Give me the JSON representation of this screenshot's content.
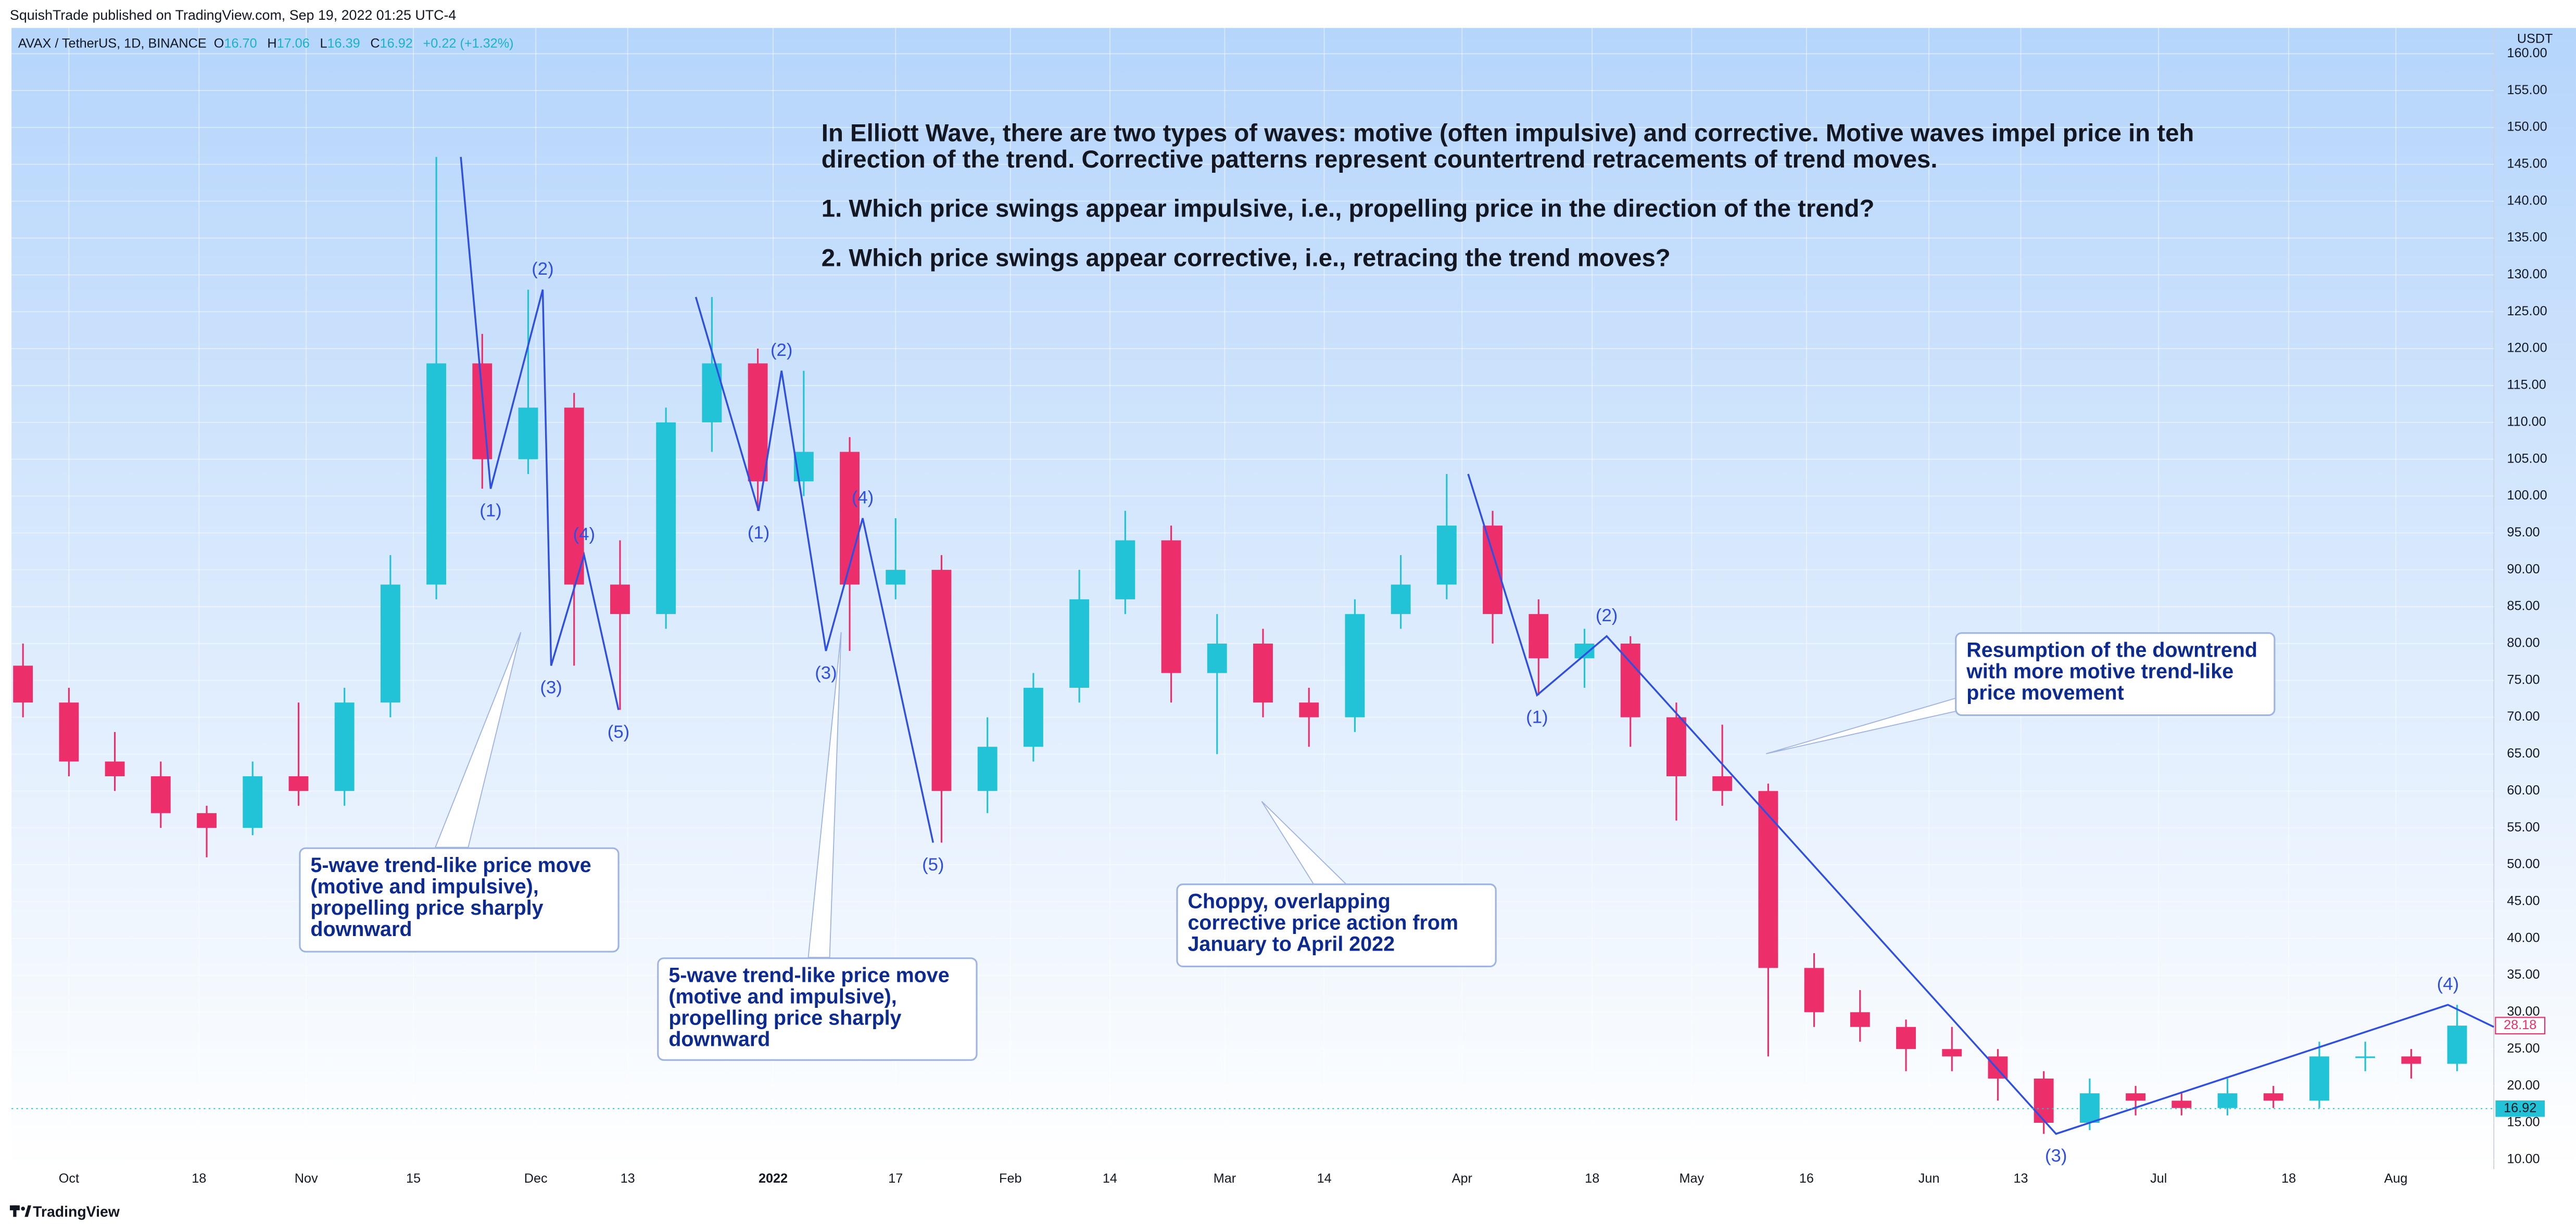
{
  "header": {
    "title": "SquishTrade published on TradingView.com, Sep 19, 2022 01:25 UTC-4",
    "symbol": "AVAX / TetherUS, 1D, BINANCE",
    "legend": [
      {
        "key": "O",
        "value": "16.70"
      },
      {
        "key": "H",
        "value": "17.06"
      },
      {
        "key": "L",
        "value": "16.39"
      },
      {
        "key": "C",
        "value": "16.92"
      }
    ],
    "change": "+0.22 (+1.32%)"
  },
  "chart_data": {
    "type": "candlestick",
    "axis_unit": "USDT",
    "x": [
      -6,
      0,
      6,
      12,
      18,
      24,
      30,
      36,
      42,
      48,
      54,
      60,
      66,
      72,
      78,
      84,
      90,
      96,
      102,
      108,
      114,
      120,
      126,
      132,
      138,
      144,
      150,
      156,
      162,
      168,
      174,
      180,
      186,
      192,
      198,
      204,
      210,
      216,
      222,
      228,
      234,
      240,
      246,
      252,
      258,
      264,
      270,
      276,
      282,
      288,
      294,
      300,
      306,
      312
    ],
    "open": [
      77,
      72,
      64,
      62,
      57,
      55,
      62,
      60,
      72,
      88,
      118,
      105,
      112,
      88,
      84,
      110,
      118,
      102,
      106,
      88,
      90,
      60,
      66,
      74,
      86,
      94,
      76,
      80,
      72,
      70,
      84,
      88,
      96,
      84,
      78,
      80,
      70,
      62,
      60,
      36,
      30,
      28,
      25,
      24,
      21,
      15,
      19,
      18,
      17,
      19,
      18,
      24,
      24,
      23
    ],
    "high": [
      80,
      74,
      68,
      64,
      58,
      64,
      72,
      74,
      92,
      146,
      122,
      128,
      114,
      94,
      112,
      127,
      120,
      117,
      108,
      97,
      92,
      70,
      76,
      90,
      98,
      96,
      84,
      82,
      74,
      86,
      92,
      103,
      98,
      86,
      82,
      81,
      72,
      69,
      61,
      38,
      33,
      29,
      28,
      25,
      22,
      21,
      20,
      19,
      21,
      20,
      26,
      26,
      25,
      31
    ],
    "low": [
      70,
      62,
      60,
      55,
      51,
      54,
      58,
      58,
      70,
      86,
      101,
      103,
      77,
      71,
      82,
      106,
      98,
      100,
      79,
      86,
      53,
      57,
      64,
      72,
      84,
      72,
      65,
      70,
      66,
      68,
      82,
      86,
      80,
      73,
      74,
      66,
      56,
      58,
      24,
      28,
      26,
      22,
      22,
      18,
      13.5,
      14,
      16,
      16,
      16,
      17,
      17,
      22,
      21,
      22
    ],
    "close": [
      72,
      64,
      62,
      57,
      55,
      62,
      60,
      72,
      88,
      118,
      105,
      112,
      88,
      84,
      110,
      118,
      102,
      106,
      88,
      90,
      60,
      66,
      74,
      86,
      94,
      76,
      80,
      72,
      70,
      84,
      88,
      96,
      84,
      78,
      80,
      70,
      62,
      60,
      36,
      30,
      28,
      25,
      24,
      21,
      15,
      19,
      18,
      17,
      19,
      18,
      24,
      24,
      23,
      28.18
    ],
    "up_color": "#22c3d6",
    "down_color": "#ec2f6a",
    "wave_color": "#2f4fe0",
    "xlim": [
      -7.5,
      316.8
    ],
    "ylim": [
      8.7,
      163.5
    ],
    "xticks": [
      {
        "value": 0,
        "label": "Oct"
      },
      {
        "value": 17,
        "label": "18"
      },
      {
        "value": 31,
        "label": "Nov"
      },
      {
        "value": 45,
        "label": "15"
      },
      {
        "value": 61,
        "label": "Dec"
      },
      {
        "value": 73,
        "label": "13"
      },
      {
        "value": 92,
        "label": "2022"
      },
      {
        "value": 108,
        "label": "17"
      },
      {
        "value": 123,
        "label": "Feb"
      },
      {
        "value": 136,
        "label": "14"
      },
      {
        "value": 151,
        "label": "Mar"
      },
      {
        "value": 164,
        "label": "14"
      },
      {
        "value": 182,
        "label": "Apr"
      },
      {
        "value": 199,
        "label": "18"
      },
      {
        "value": 212,
        "label": "May"
      },
      {
        "value": 227,
        "label": "16"
      },
      {
        "value": 243,
        "label": "Jun"
      },
      {
        "value": 255,
        "label": "13"
      },
      {
        "value": 273,
        "label": "Jul"
      },
      {
        "value": 290,
        "label": "18"
      },
      {
        "value": 304,
        "label": "Aug"
      }
    ],
    "yticks": [
      {
        "value": 10,
        "label": "10.00"
      },
      {
        "value": 15,
        "label": "15.00"
      },
      {
        "value": 20,
        "label": "20.00"
      },
      {
        "value": 25,
        "label": "25.00"
      },
      {
        "value": 30,
        "label": "30.00"
      },
      {
        "value": 35,
        "label": "35.00"
      },
      {
        "value": 40,
        "label": "40.00"
      },
      {
        "value": 45,
        "label": "45.00"
      },
      {
        "value": 50,
        "label": "50.00"
      },
      {
        "value": 55,
        "label": "55.00"
      },
      {
        "value": 60,
        "label": "60.00"
      },
      {
        "value": 65,
        "label": "65.00"
      },
      {
        "value": 70,
        "label": "70.00"
      },
      {
        "value": 75,
        "label": "75.00"
      },
      {
        "value": 80,
        "label": "80.00"
      },
      {
        "value": 85,
        "label": "85.00"
      },
      {
        "value": 90,
        "label": "90.00"
      },
      {
        "value": 95,
        "label": "95.00"
      },
      {
        "value": 100,
        "label": "100.00"
      },
      {
        "value": 105,
        "label": "105.00"
      },
      {
        "value": 110,
        "label": "110.00"
      },
      {
        "value": 115,
        "label": "115.00"
      },
      {
        "value": 120,
        "label": "120.00"
      },
      {
        "value": 125,
        "label": "125.00"
      },
      {
        "value": 130,
        "label": "130.00"
      },
      {
        "value": 135,
        "label": "135.00"
      },
      {
        "value": 140,
        "label": "140.00"
      },
      {
        "value": 145,
        "label": "145.00"
      },
      {
        "value": 150,
        "label": "150.00"
      },
      {
        "value": 155,
        "label": "155.00"
      },
      {
        "value": 160,
        "label": "160.00"
      }
    ],
    "grid": true,
    "waves": [
      {
        "x": [
          51.2,
          55.1,
          61.9,
          63.0,
          67.3,
          71.8
        ],
        "y": [
          146,
          101,
          128,
          77,
          92,
          71
        ],
        "labels": [
          null,
          "(1)",
          "(2)",
          "(3)",
          "(4)",
          "(5)"
        ]
      },
      {
        "x": [
          81.9,
          90.1,
          93.1,
          98.9,
          103.7,
          112.9
        ],
        "y": [
          127,
          98,
          117,
          79,
          97,
          53
        ],
        "labels": [
          null,
          "(1)",
          "(2)",
          "(3)",
          "(4)",
          "(5)"
        ]
      },
      {
        "x": [
          182.8,
          191.8,
          200.9,
          259.6,
          310.8,
          316.8
        ],
        "y": [
          103,
          73,
          81,
          13.5,
          31,
          28
        ],
        "labels": [
          null,
          "(1)",
          "(2)",
          "(3)",
          "(4)",
          null
        ]
      }
    ],
    "marker_price": 28.18,
    "last_price": 16.92
  },
  "intro": {
    "paragraph": "In Elliott Wave, there are two types of waves: motive (often impulsive) and corrective.  Motive waves impel price in teh direction of the trend. Corrective patterns represent countertrend retracements of trend moves.",
    "questions": [
      "1. Which price swings appear impulsive, i.e., propelling price in the direction of the trend?",
      "2. Which price swings appear corrective, i.e., retracing the trend moves?"
    ]
  },
  "annotations": [
    "5-wave trend-like price move (motive and impulsive), propelling price sharply downward",
    "5-wave trend-like price move (motive and impulsive), propelling price sharply downward",
    "Choppy, overlapping corrective price action from January to April 2022",
    "Resumption of the downtrend with more motive trend-like price movement"
  ],
  "footer": "TradingView"
}
